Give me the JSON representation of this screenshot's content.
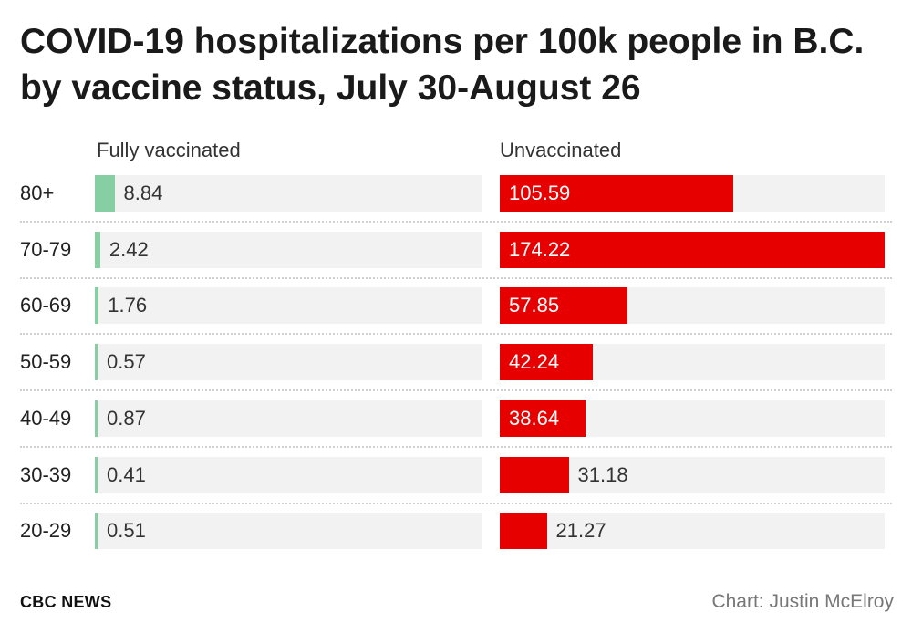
{
  "chart_data": {
    "type": "bar",
    "title": "COVID-19 hospitalizations per 100k people in B.C. by vaccine status, July 30-August 26",
    "categories": [
      "80+",
      "70-79",
      "60-69",
      "50-59",
      "40-49",
      "30-39",
      "20-29"
    ],
    "series": [
      {
        "name": "Fully vaccinated",
        "values": [
          8.84,
          2.42,
          1.76,
          0.57,
          0.87,
          0.41,
          0.51
        ],
        "labels": [
          "8.84",
          "2.42",
          "1.76",
          "0.57",
          "0.87",
          "0.41",
          "0.51"
        ],
        "color": "#86cfa2"
      },
      {
        "name": "Unvaccinated",
        "values": [
          105.59,
          174.22,
          57.85,
          42.24,
          38.64,
          31.18,
          21.27
        ],
        "labels": [
          "105.59",
          "174.22",
          "57.85",
          "42.24",
          "38.64",
          "31.18",
          "21.27"
        ],
        "color": "#e60000"
      }
    ],
    "xlim": [
      0,
      174.22
    ]
  },
  "footer": {
    "source": "CBC NEWS",
    "credit": "Chart: Justin McElroy"
  }
}
